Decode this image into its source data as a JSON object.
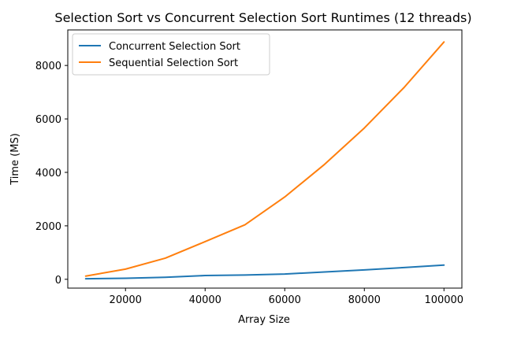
{
  "chart_data": {
    "type": "line",
    "title": "Selection Sort vs Concurrent Selection Sort Runtimes (12 threads)",
    "xlabel": "Array Size",
    "ylabel": "Time (MS)",
    "xlim": [
      5500,
      104500
    ],
    "ylim": [
      -330,
      9330
    ],
    "x_ticks": [
      20000,
      40000,
      60000,
      80000,
      100000
    ],
    "y_ticks": [
      0,
      2000,
      4000,
      6000,
      8000
    ],
    "grid": false,
    "legend": "top-left",
    "x": [
      10000,
      20000,
      30000,
      40000,
      50000,
      60000,
      70000,
      80000,
      90000,
      100000
    ],
    "series": [
      {
        "name": "Concurrent Selection Sort",
        "color": "#1f77b4",
        "values": [
          20,
          40,
          75,
          140,
          160,
          195,
          275,
          350,
          440,
          530
        ]
      },
      {
        "name": "Sequential Selection Sort",
        "color": "#ff7f0e",
        "values": [
          120,
          380,
          790,
          1410,
          2040,
          3080,
          4300,
          5660,
          7180,
          8880
        ]
      }
    ]
  }
}
